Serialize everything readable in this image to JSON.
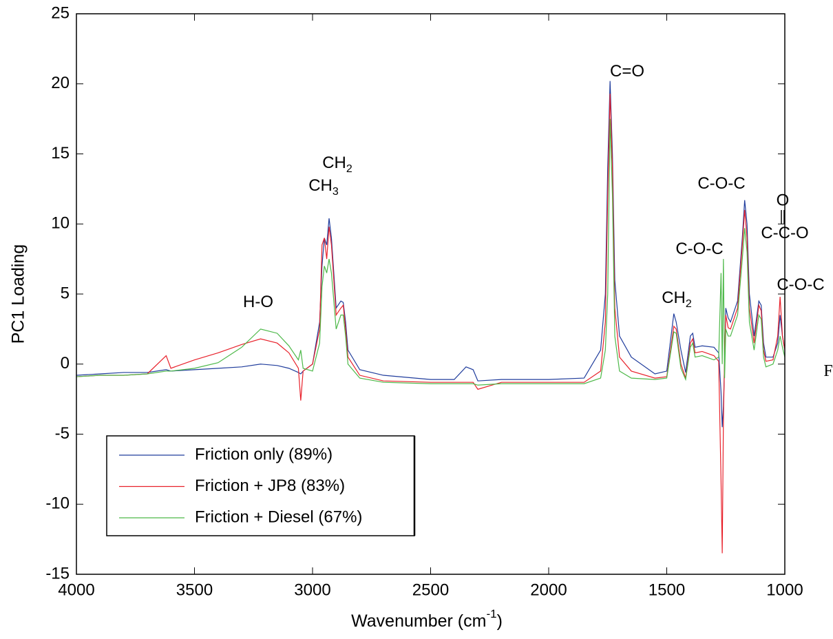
{
  "chart_data": {
    "type": "line",
    "ylabel": "PC1 Loading",
    "xlabel": {
      "text": "Wavenumber (cm",
      "superscript": "-1",
      "suffix": ")"
    },
    "xlim": [
      4000,
      1000
    ],
    "ylim": [
      -15,
      25
    ],
    "xticks": [
      4000,
      3500,
      3000,
      2500,
      2000,
      1500,
      1000
    ],
    "yticks": [
      -15,
      -10,
      -5,
      0,
      5,
      10,
      15,
      20,
      25
    ],
    "legend": "lower left",
    "x": [
      4000,
      3900,
      3800,
      3700,
      3620,
      3600,
      3500,
      3400,
      3300,
      3220,
      3150,
      3100,
      3060,
      3050,
      3040,
      3000,
      2970,
      2960,
      2950,
      2940,
      2930,
      2920,
      2900,
      2880,
      2870,
      2860,
      2850,
      2800,
      2700,
      2500,
      2400,
      2350,
      2320,
      2300,
      2200,
      2000,
      1850,
      1780,
      1760,
      1750,
      1740,
      1730,
      1720,
      1700,
      1650,
      1550,
      1500,
      1470,
      1460,
      1440,
      1420,
      1400,
      1390,
      1380,
      1350,
      1300,
      1280,
      1270,
      1265,
      1260,
      1255,
      1250,
      1240,
      1230,
      1200,
      1180,
      1170,
      1160,
      1150,
      1130,
      1110,
      1100,
      1090,
      1080,
      1050,
      1030,
      1020,
      1010,
      1000
    ],
    "series": [
      {
        "name": "Friction only (89%)",
        "color": "#1f3c9c",
        "values": [
          -0.8,
          -0.7,
          -0.6,
          -0.6,
          -0.4,
          -0.5,
          -0.4,
          -0.3,
          -0.2,
          0,
          -0.1,
          -0.3,
          -0.6,
          -0.7,
          -0.5,
          0,
          3,
          7,
          9,
          8.5,
          10.4,
          9,
          4,
          4.5,
          4.4,
          3,
          1,
          -0.4,
          -0.8,
          -1.1,
          -1.1,
          -0.2,
          -0.4,
          -1.2,
          -1.1,
          -1.1,
          -1.0,
          1,
          5,
          14,
          20.2,
          15,
          6,
          2,
          0.5,
          -0.7,
          -0.5,
          3.6,
          3.0,
          1,
          -0.6,
          2.0,
          2.2,
          1.2,
          1.3,
          1.2,
          0.8,
          -2,
          -4.5,
          -3,
          0,
          4,
          3.3,
          3,
          4.5,
          9,
          11.7,
          10,
          5,
          2,
          4.5,
          4.2,
          1.5,
          0.5,
          0.5,
          1.5,
          3.5,
          2,
          1
        ]
      },
      {
        "name": "Friction + JP8 (83%)",
        "color": "#e8202a",
        "values": [
          -0.9,
          -0.8,
          -0.8,
          -0.7,
          0.6,
          -0.3,
          0.3,
          0.8,
          1.4,
          1.8,
          1.5,
          0.8,
          -0.3,
          -2.6,
          -0.5,
          0,
          2.5,
          8.5,
          9,
          7.5,
          9.8,
          8.5,
          3.5,
          4,
          4.2,
          2.5,
          0.5,
          -0.8,
          -1.2,
          -1.3,
          -1.3,
          -1.3,
          -1.3,
          -1.8,
          -1.3,
          -1.3,
          -1.3,
          -0.5,
          3,
          12,
          19.3,
          14,
          4,
          0.5,
          -0.5,
          -1.0,
          -0.9,
          2.7,
          2.5,
          0,
          -1.0,
          1.5,
          1.8,
          0.8,
          0.9,
          0.6,
          0.2,
          -8.4,
          -13.5,
          -4,
          0.5,
          3.5,
          2.6,
          2.5,
          4,
          8.5,
          11,
          9,
          4,
          1.5,
          4.2,
          3.8,
          1,
          0.2,
          0.3,
          2,
          4.8,
          2,
          1
        ]
      },
      {
        "name": "Friction + Diesel (67%)",
        "color": "#4cb848",
        "values": [
          -0.9,
          -0.8,
          -0.8,
          -0.7,
          -0.5,
          -0.5,
          -0.3,
          0.1,
          1.2,
          2.5,
          2.2,
          1.3,
          0.3,
          1.0,
          -0.3,
          -0.5,
          1.5,
          5.5,
          7,
          6.5,
          7.5,
          6.5,
          2.5,
          3.5,
          3.5,
          2.0,
          0,
          -1,
          -1.3,
          -1.4,
          -1.4,
          -1.4,
          -1.4,
          -1.5,
          -1.4,
          -1.4,
          -1.4,
          -1,
          1,
          5,
          17.5,
          12,
          2,
          -0.5,
          -1,
          -1.1,
          -1.0,
          2.3,
          2.2,
          -0.3,
          -1.1,
          1.2,
          1.5,
          0.5,
          0.6,
          0.3,
          0.5,
          6.5,
          0,
          7.5,
          -1,
          2.5,
          2.0,
          2.0,
          3.5,
          7.5,
          9.7,
          8,
          3,
          1,
          3.5,
          3.2,
          0.5,
          -0.2,
          0,
          1,
          2,
          1.2,
          0.5
        ]
      }
    ],
    "annotations": [
      {
        "text": "H-O"
      },
      {
        "text": "CH",
        "sub": "2"
      },
      {
        "text": "CH",
        "sub": "3"
      },
      {
        "text": "C=O"
      },
      {
        "text": "CH",
        "sub": "2"
      },
      {
        "text": "C-O-C"
      },
      {
        "text": "C-O-C"
      },
      {
        "text": "C-O-C"
      },
      {
        "text": "C-C-O",
        "top": "O"
      },
      {
        "text": "F"
      }
    ]
  }
}
